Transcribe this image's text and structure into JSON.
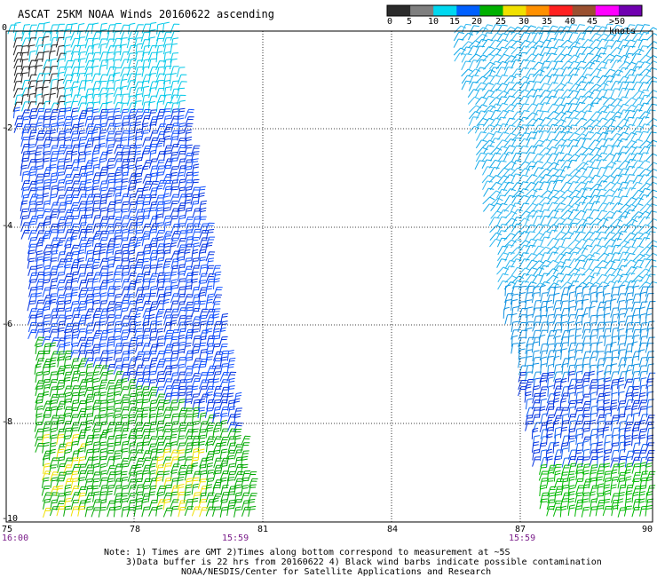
{
  "title": "ASCAT 25KM NOAA Winds 20160622 ascending",
  "legend": {
    "labels": [
      "0",
      "5",
      "10",
      "15",
      "20",
      "25",
      "30",
      "35",
      "40",
      "45",
      ">50 knots"
    ],
    "colors": [
      "#2b2b2b",
      "#7f7f7f",
      "#00d8f0",
      "#0060ff",
      "#00b000",
      "#f0e000",
      "#ff9000",
      "#ff2020",
      "#9a5030",
      "#ff00ff",
      "#7000b0"
    ]
  },
  "axes": {
    "lon_labels": [
      "75",
      "78",
      "81",
      "84",
      "87",
      "90"
    ],
    "lat_labels": [
      "0",
      "-2",
      "-4",
      "-6",
      "-8",
      "-10"
    ]
  },
  "times": {
    "left_start": "16:00",
    "left_end": "15:59",
    "right_end": "15:59"
  },
  "notes": {
    "line1": "Note: 1) Times are GMT 2)Times along bottom correspond to measurement at ~5S",
    "line2": "3)Data buffer is 22 hrs from 20160622 4) Black wind barbs indicate possible contamination",
    "line3": "NOAA/NESDIS/Center for Satellite Applications and Research"
  }
}
